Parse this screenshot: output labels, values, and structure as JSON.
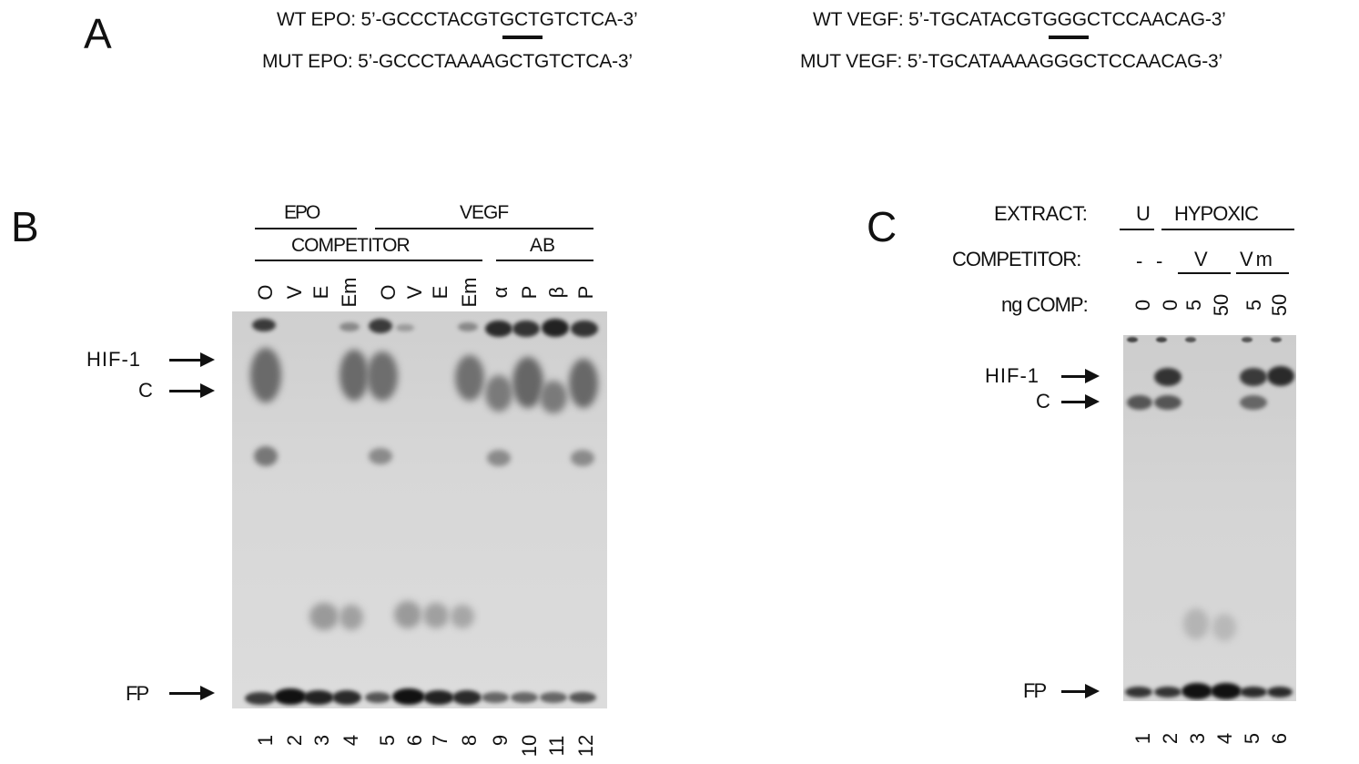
{
  "panel_a": {
    "letter": "A",
    "wt_epo": "WT EPO: 5’-GCCCTACGTGCTGTCTCA-3’",
    "mut_epo": "MUT EPO: 5’-GCCCTAAAAGCTGTCTCA-3’",
    "wt_vegf": "WT VEGF: 5’-TGCATACGTGGGCTCCAACAG-3’",
    "mut_vegf": "MUT VEGF: 5’-TGCATAAAAGGGCTCCAACAG-3’"
  },
  "panel_b": {
    "letter": "B",
    "group_epo": "EPO",
    "group_vegf": "VEGF",
    "group_competitor": "COMPETITOR",
    "group_ab": "AB",
    "lane_headers": [
      "O",
      "V",
      "E",
      "Em",
      "O",
      "V",
      "E",
      "Em",
      "α",
      "P",
      "β",
      "P"
    ],
    "lane_numbers": [
      "1",
      "2",
      "3",
      "4",
      "5",
      "6",
      "7",
      "8",
      "9",
      "10",
      "11",
      "12"
    ],
    "marker_hif1": "HIF-1",
    "marker_c": "C",
    "marker_fp": "FP"
  },
  "panel_c": {
    "letter": "C",
    "extract_label": "EXTRACT:",
    "extract_u": "U",
    "extract_hypoxic": "HYPOXIC",
    "competitor_label": "COMPETITOR:",
    "comp_values": [
      "-",
      "-"
    ],
    "comp_v": "V",
    "comp_vm": "Vm",
    "ng_label": "ng COMP:",
    "ng_values": [
      "0",
      "0",
      "5",
      "50",
      "5",
      "50"
    ],
    "lane_numbers": [
      "1",
      "2",
      "3",
      "4",
      "5",
      "6"
    ],
    "marker_hif1": "HIF-1",
    "marker_c": "C",
    "marker_fp": "FP"
  }
}
